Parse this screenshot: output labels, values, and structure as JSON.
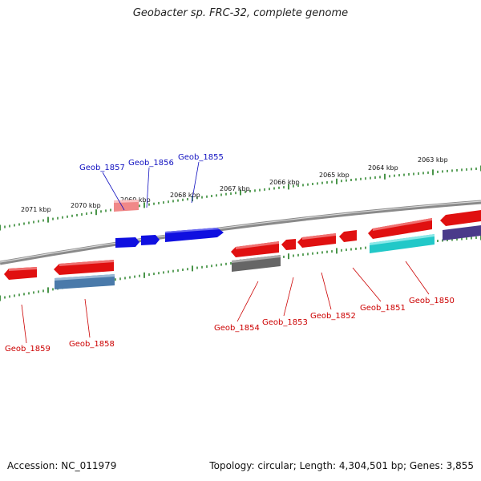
{
  "title": "Geobacter sp. FRC-32, complete genome",
  "footer": {
    "accession": "Accession: NC_011979",
    "summary": "Topology: circular; Length: 4,304,501 bp; Genes: 3,855"
  },
  "colors": {
    "backbone": "#8a8a8a",
    "ticks": "#1a7a1a",
    "label_forward": "#1010c0",
    "label_reverse": "#cc0000"
  },
  "kbp_labels": [
    "2071 kbp",
    "2070 kbp",
    "2069 kbp",
    "2068 kbp",
    "2067 kbp",
    "2066 kbp",
    "2065 kbp",
    "2064 kbp",
    "2063 kbp"
  ],
  "genes": [
    {
      "id": "Geob_1859",
      "strand": "reverse",
      "color": "#e01010"
    },
    {
      "id": "Geob_1858",
      "strand": "reverse",
      "color": "#4a7aaa"
    },
    {
      "id": "Geob_1857",
      "strand": "forward",
      "color": "#f08888"
    },
    {
      "id": "Geob_1856",
      "strand": "forward",
      "color": "#1010e0"
    },
    {
      "id": "Geob_1855",
      "strand": "forward",
      "color": "#1010e0"
    },
    {
      "id": "Geob_1854",
      "strand": "reverse",
      "color": "#666666"
    },
    {
      "id": "Geob_1853",
      "strand": "reverse",
      "color": "#e01010"
    },
    {
      "id": "Geob_1852",
      "strand": "reverse",
      "color": "#e01010"
    },
    {
      "id": "Geob_1851",
      "strand": "reverse",
      "color": "#e01010"
    },
    {
      "id": "Geob_1850",
      "strand": "reverse",
      "color": "#22c8c8"
    }
  ]
}
